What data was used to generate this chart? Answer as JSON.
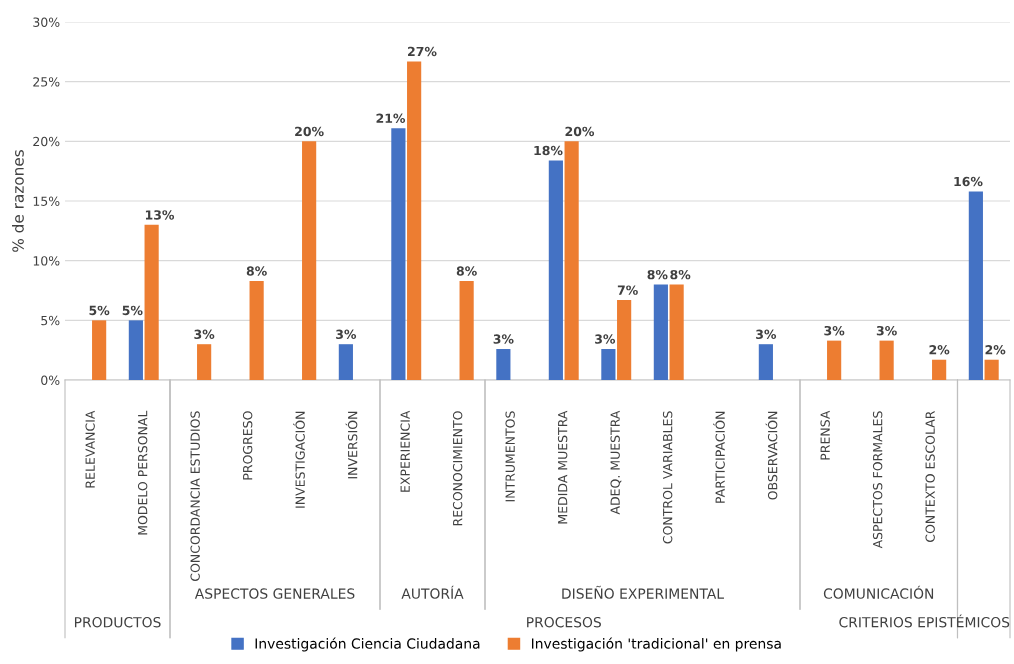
{
  "chart_data": {
    "type": "bar",
    "ylabel": "% de razones",
    "categories": [
      "RELEVANCIA",
      "MODELO PERSONAL",
      "CONCORDANCIA ESTUDIOS",
      "PROGRESO",
      "INVESTIGACIÓN",
      "INVERSIÓN",
      "EXPERIENCIA",
      "RECONOCIMIENTO",
      "INTRUMENTOS",
      "MEDIDA MUESTRA",
      "ADEQ. MUESTRA",
      "CONTROL VARIABLES",
      "PARTICIPACIÓN",
      "OBSERVACIÓN",
      "PRENSA",
      "ASPECTOS FORMALES",
      "CONTEXTO ESCOLAR",
      null
    ],
    "series": [
      {
        "name": "Investigación Ciencia Ciudadana",
        "color": "#4472c4",
        "values": [
          null,
          5,
          null,
          null,
          null,
          3,
          21.1,
          null,
          2.6,
          18.4,
          2.6,
          8,
          null,
          3,
          null,
          null,
          null,
          15.8
        ],
        "value_labels": [
          null,
          "5%",
          null,
          null,
          null,
          "3%",
          "21%",
          null,
          "3%",
          "18%",
          "3%",
          "8%",
          null,
          "3%",
          null,
          null,
          null,
          "16%"
        ]
      },
      {
        "name": "Investigación 'tradicional' en prensa",
        "color": "#ed7d31",
        "values": [
          5,
          13,
          3,
          8.3,
          20,
          null,
          26.7,
          8.3,
          null,
          20,
          6.7,
          8,
          null,
          null,
          3.3,
          3.3,
          1.7,
          1.7
        ],
        "value_labels": [
          "5%",
          "13%",
          "3%",
          "8%",
          "20%",
          null,
          "27%",
          "8%",
          null,
          "20%",
          "7%",
          "8%",
          null,
          null,
          "3%",
          "3%",
          "2%",
          "2%"
        ]
      }
    ],
    "ylim": [
      0,
      30
    ],
    "yticks": [
      {
        "value": 0,
        "label": "0%"
      },
      {
        "value": 5,
        "label": "5%"
      },
      {
        "value": 10,
        "label": "10%"
      },
      {
        "value": 15,
        "label": "15%"
      },
      {
        "value": 20,
        "label": "20%"
      },
      {
        "value": 25,
        "label": "25%"
      },
      {
        "value": 30,
        "label": "30%"
      }
    ],
    "grid": "y",
    "legend": "bottom",
    "annotations": [
      "ASPECTOS GENERALES",
      "AUTORÍA",
      "DISEÑO EXPERIMENTAL",
      "COMUNICACIÓN",
      "PRODUCTOS",
      "PROCESOS",
      "CRITERIOS EPISTÉMICOS"
    ]
  }
}
